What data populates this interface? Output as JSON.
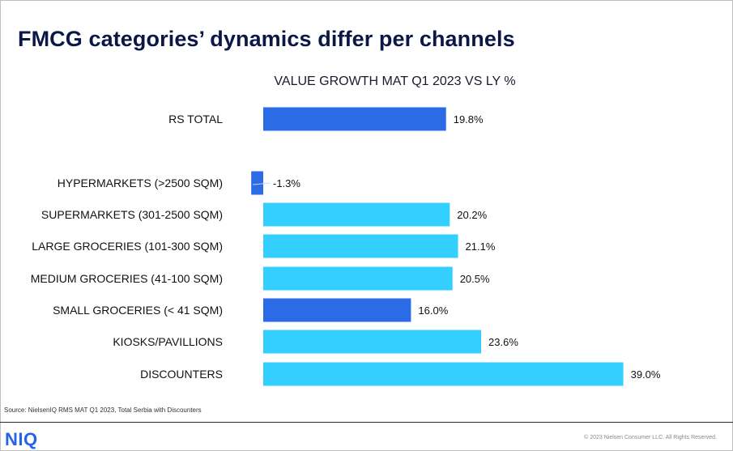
{
  "page": {
    "title": "FMCG categories’ dynamics differ per channels",
    "source": "Source: NielsenIQ RMS MAT Q1 2023, Total Serbia with Discounters",
    "logo": "NIQ",
    "copyright": "© 2023 Nielsen Consumer LLC. All Rights Reserved."
  },
  "colors": {
    "dark_bar": "#2b6be6",
    "light_bar": "#33cfff"
  },
  "chart_data": {
    "type": "bar",
    "orientation": "horizontal",
    "title": "VALUE GROWTH MAT Q1 2023 VS LY %",
    "categories": [
      "RS TOTAL",
      "HYPERMARKETS (>2500 SQM)",
      "SUPERMARKETS (301-2500 SQM)",
      "LARGE GROCERIES (101-300 SQM)",
      "MEDIUM GROCERIES (41-100 SQM)",
      "SMALL GROCERIES (< 41 SQM)",
      "KIOSKS/PAVILLIONS",
      "DISCOUNTERS"
    ],
    "values": [
      19.8,
      -1.3,
      20.2,
      21.1,
      20.5,
      16.0,
      23.6,
      39.0
    ],
    "value_labels": [
      "19.8%",
      "-1.3%",
      "20.2%",
      "21.1%",
      "20.5%",
      "16.0%",
      "23.6%",
      "39.0%"
    ],
    "bar_colors": [
      "dark",
      "dark",
      "light",
      "light",
      "light",
      "dark",
      "light",
      "light"
    ],
    "unit": "%",
    "gridlines": false
  }
}
